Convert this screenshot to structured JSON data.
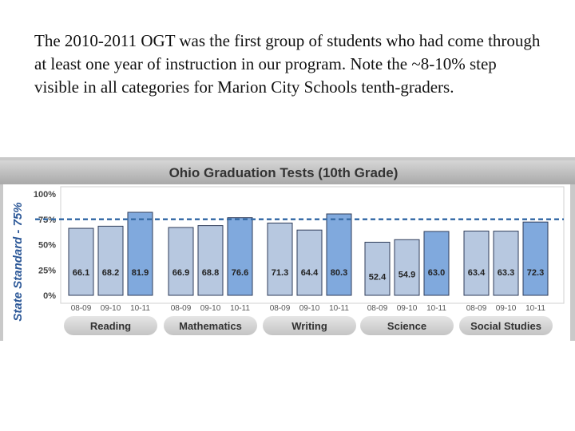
{
  "caption": "The 2010-2011 OGT was the first group of students who had come through at least one year of instruction in our program. Note the ~8-10% step visible in all categories for Marion City Schools tenth-graders.",
  "chart_data": {
    "type": "bar",
    "title": "Ohio Graduation Tests (10th Grade)",
    "ylabel": "State Standard - 75%",
    "ylim": [
      0,
      100
    ],
    "y_ticks": [
      "0%",
      "25%",
      "50%",
      "75%",
      "100%"
    ],
    "reference_line": 75,
    "groups": [
      {
        "name": "Reading",
        "categories": [
          "08-09",
          "09-10",
          "10-11"
        ],
        "values": [
          66.1,
          68.2,
          81.9
        ]
      },
      {
        "name": "Mathematics",
        "categories": [
          "08-09",
          "09-10",
          "10-11"
        ],
        "values": [
          66.9,
          68.8,
          76.6
        ]
      },
      {
        "name": "Writing",
        "categories": [
          "08-09",
          "09-10",
          "10-11"
        ],
        "values": [
          71.3,
          64.4,
          80.3
        ]
      },
      {
        "name": "Science",
        "categories": [
          "08-09",
          "09-10",
          "10-11"
        ],
        "values": [
          52.4,
          54.9,
          63.0
        ]
      },
      {
        "name": "Social Studies",
        "categories": [
          "08-09",
          "09-10",
          "10-11"
        ],
        "values": [
          63.4,
          63.3,
          72.3
        ]
      }
    ],
    "value_labels": [
      [
        "66.1",
        "68.2",
        "81.9"
      ],
      [
        "66.9",
        "68.8",
        "76.6"
      ],
      [
        "71.3",
        "64.4",
        "80.3"
      ],
      [
        "52.4",
        "54.9",
        "63.0"
      ],
      [
        "63.4",
        "63.3",
        "72.3"
      ]
    ],
    "colors": {
      "bar_past": "#b7c8e0",
      "bar_current": "#80a9dd",
      "bar_edge": "#2f3d5a",
      "reference_line": "#3a6ea8",
      "ylabel": "#2b5797",
      "title_band": "#bdbdbd"
    }
  }
}
